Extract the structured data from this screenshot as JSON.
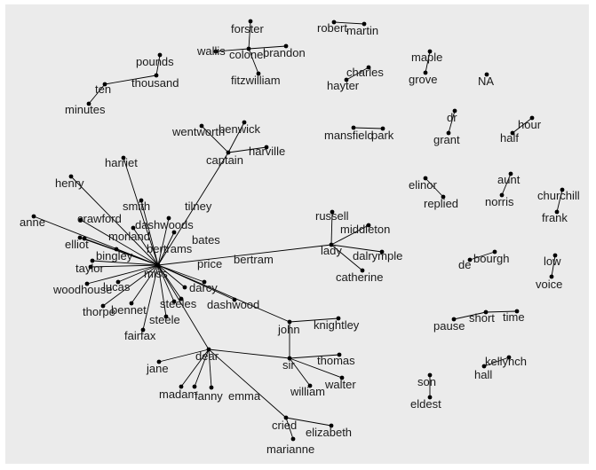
{
  "graph": {
    "nodes": [
      {
        "id": "miss",
        "label": "miss"
      },
      {
        "id": "anne",
        "label": "anne"
      },
      {
        "id": "henry",
        "label": "henry"
      },
      {
        "id": "harriet",
        "label": "harriet"
      },
      {
        "id": "crawford",
        "label": "crawford"
      },
      {
        "id": "smith",
        "label": "smith"
      },
      {
        "id": "dashwoods",
        "label": "dashwoods"
      },
      {
        "id": "morland",
        "label": "morland"
      },
      {
        "id": "elliot",
        "label": "elliot"
      },
      {
        "id": "bertrams",
        "label": "bertrams"
      },
      {
        "id": "bingley",
        "label": "bingley"
      },
      {
        "id": "taylor",
        "label": "taylor"
      },
      {
        "id": "woodhouse",
        "label": "woodhouse"
      },
      {
        "id": "lucas",
        "label": "lucas"
      },
      {
        "id": "thorpe",
        "label": "thorpe"
      },
      {
        "id": "bennet",
        "label": "bennet"
      },
      {
        "id": "steele",
        "label": "steele"
      },
      {
        "id": "steeles",
        "label": "steeles"
      },
      {
        "id": "dashwood",
        "label": "dashwood"
      },
      {
        "id": "darcy",
        "label": "darcy"
      },
      {
        "id": "price",
        "label": "price"
      },
      {
        "id": "bates",
        "label": "bates"
      },
      {
        "id": "tilney",
        "label": "tilney"
      },
      {
        "id": "captain",
        "label": "captain"
      },
      {
        "id": "wentworth",
        "label": "wentworth"
      },
      {
        "id": "benwick",
        "label": "benwick"
      },
      {
        "id": "harville",
        "label": "harville"
      },
      {
        "id": "bertram",
        "label": "bertram"
      },
      {
        "id": "lady",
        "label": "lady"
      },
      {
        "id": "russell",
        "label": "russell"
      },
      {
        "id": "middleton",
        "label": "middleton"
      },
      {
        "id": "dalrymple",
        "label": "dalrymple"
      },
      {
        "id": "catherine",
        "label": "catherine"
      },
      {
        "id": "fairfax",
        "label": "fairfax"
      },
      {
        "id": "jane",
        "label": "jane"
      },
      {
        "id": "dear",
        "label": "dear"
      },
      {
        "id": "madam",
        "label": "madam"
      },
      {
        "id": "fanny",
        "label": "fanny"
      },
      {
        "id": "emma",
        "label": "emma"
      },
      {
        "id": "john",
        "label": "john"
      },
      {
        "id": "knightley",
        "label": "knightley"
      },
      {
        "id": "sir",
        "label": "sir"
      },
      {
        "id": "thomas",
        "label": "thomas"
      },
      {
        "id": "walter",
        "label": "walter"
      },
      {
        "id": "william",
        "label": "william"
      },
      {
        "id": "cried",
        "label": "cried"
      },
      {
        "id": "elizabeth",
        "label": "elizabeth"
      },
      {
        "id": "marianne",
        "label": "marianne"
      },
      {
        "id": "forster",
        "label": "forster"
      },
      {
        "id": "colonel",
        "label": "colonel"
      },
      {
        "id": "brandon",
        "label": "brandon"
      },
      {
        "id": "wallis",
        "label": "wallis"
      },
      {
        "id": "fitzwilliam",
        "label": "fitzwilliam"
      },
      {
        "id": "robert",
        "label": "robert"
      },
      {
        "id": "martin",
        "label": "martin"
      },
      {
        "id": "pounds",
        "label": "pounds"
      },
      {
        "id": "thousand",
        "label": "thousand"
      },
      {
        "id": "ten",
        "label": "ten"
      },
      {
        "id": "minutes",
        "label": "minutes"
      },
      {
        "id": "charles",
        "label": "charles"
      },
      {
        "id": "hayter",
        "label": "hayter"
      },
      {
        "id": "maple",
        "label": "maple"
      },
      {
        "id": "grove",
        "label": "grove"
      },
      {
        "id": "NA",
        "label": "NA"
      },
      {
        "id": "mansfield",
        "label": "mansfield"
      },
      {
        "id": "park",
        "label": "park"
      },
      {
        "id": "dr",
        "label": "dr"
      },
      {
        "id": "grant",
        "label": "grant"
      },
      {
        "id": "hour",
        "label": "hour"
      },
      {
        "id": "half",
        "label": "half"
      },
      {
        "id": "elinor",
        "label": "elinor"
      },
      {
        "id": "replied",
        "label": "replied"
      },
      {
        "id": "aunt",
        "label": "aunt"
      },
      {
        "id": "norris",
        "label": "norris"
      },
      {
        "id": "churchill",
        "label": "churchill"
      },
      {
        "id": "frank",
        "label": "frank"
      },
      {
        "id": "bourgh",
        "label": "bourgh"
      },
      {
        "id": "de",
        "label": "de"
      },
      {
        "id": "low",
        "label": "low"
      },
      {
        "id": "voice",
        "label": "voice"
      },
      {
        "id": "pause",
        "label": "pause"
      },
      {
        "id": "short",
        "label": "short"
      },
      {
        "id": "time",
        "label": "time"
      },
      {
        "id": "kellynch",
        "label": "kellynch"
      },
      {
        "id": "hall",
        "label": "hall"
      },
      {
        "id": "son",
        "label": "son"
      },
      {
        "id": "eldest",
        "label": "eldest"
      }
    ],
    "edges": [
      [
        "miss",
        "anne"
      ],
      [
        "miss",
        "henry"
      ],
      [
        "miss",
        "harriet"
      ],
      [
        "miss",
        "crawford"
      ],
      [
        "miss",
        "smith"
      ],
      [
        "miss",
        "dashwoods"
      ],
      [
        "miss",
        "morland"
      ],
      [
        "miss",
        "elliot"
      ],
      [
        "miss",
        "bertrams"
      ],
      [
        "miss",
        "bingley"
      ],
      [
        "miss",
        "taylor"
      ],
      [
        "miss",
        "woodhouse"
      ],
      [
        "miss",
        "lucas"
      ],
      [
        "miss",
        "thorpe"
      ],
      [
        "miss",
        "bennet"
      ],
      [
        "miss",
        "steele"
      ],
      [
        "miss",
        "steeles"
      ],
      [
        "miss",
        "dashwood"
      ],
      [
        "miss",
        "darcy"
      ],
      [
        "miss",
        "price"
      ],
      [
        "miss",
        "bates"
      ],
      [
        "miss",
        "tilney"
      ],
      [
        "miss",
        "fairfax"
      ],
      [
        "miss",
        "bertram"
      ],
      [
        "miss",
        "captain"
      ],
      [
        "miss",
        "lady"
      ],
      [
        "miss",
        "john"
      ],
      [
        "miss",
        "dear"
      ],
      [
        "captain",
        "wentworth"
      ],
      [
        "captain",
        "benwick"
      ],
      [
        "captain",
        "harville"
      ],
      [
        "lady",
        "russell"
      ],
      [
        "lady",
        "middleton"
      ],
      [
        "lady",
        "dalrymple"
      ],
      [
        "lady",
        "catherine"
      ],
      [
        "dear",
        "jane"
      ],
      [
        "dear",
        "madam"
      ],
      [
        "dear",
        "fanny"
      ],
      [
        "dear",
        "emma"
      ],
      [
        "dear",
        "sir"
      ],
      [
        "dear",
        "cried"
      ],
      [
        "john",
        "knightley"
      ],
      [
        "john",
        "sir"
      ],
      [
        "sir",
        "thomas"
      ],
      [
        "sir",
        "walter"
      ],
      [
        "sir",
        "william"
      ],
      [
        "cried",
        "elizabeth"
      ],
      [
        "cried",
        "marianne"
      ],
      [
        "colonel",
        "forster"
      ],
      [
        "colonel",
        "brandon"
      ],
      [
        "colonel",
        "wallis"
      ],
      [
        "colonel",
        "fitzwilliam"
      ],
      [
        "robert",
        "martin"
      ],
      [
        "pounds",
        "thousand"
      ],
      [
        "thousand",
        "ten"
      ],
      [
        "ten",
        "minutes"
      ],
      [
        "charles",
        "hayter"
      ],
      [
        "maple",
        "grove"
      ],
      [
        "mansfield",
        "park"
      ],
      [
        "dr",
        "grant"
      ],
      [
        "hour",
        "half"
      ],
      [
        "elinor",
        "replied"
      ],
      [
        "aunt",
        "norris"
      ],
      [
        "churchill",
        "frank"
      ],
      [
        "bourgh",
        "de"
      ],
      [
        "low",
        "voice"
      ],
      [
        "pause",
        "short"
      ],
      [
        "short",
        "time"
      ],
      [
        "kellynch",
        "hall"
      ],
      [
        "son",
        "eldest"
      ]
    ]
  }
}
